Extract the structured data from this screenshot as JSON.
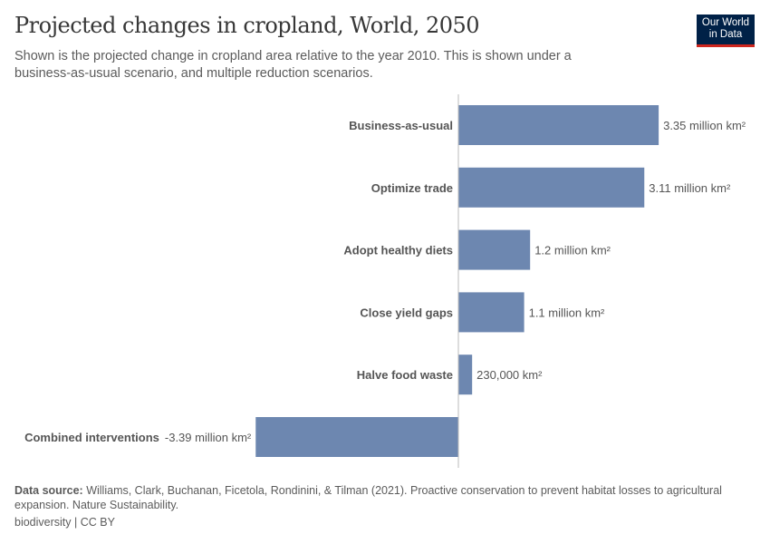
{
  "header": {
    "title": "Projected changes in cropland, World, 2050",
    "subtitle": "Shown is the projected change in cropland area relative to the year 2010. This is shown under a business-as-usual scenario, and multiple reduction scenarios.",
    "logo": "Our World in Data"
  },
  "chart_data": {
    "type": "bar",
    "orientation": "horizontal",
    "unit": "million km²",
    "categories": [
      "Business-as-usual",
      "Optimize trade",
      "Adopt healthy diets",
      "Close yield gaps",
      "Halve food waste",
      "Combined interventions"
    ],
    "values": [
      3.35,
      3.11,
      1.2,
      1.1,
      0.23,
      -3.39
    ],
    "data_labels": [
      "3.35 million km²",
      "3.11 million km²",
      "1.2 million km²",
      "1.1 million km²",
      "230,000 km²",
      "-3.39 million km²"
    ],
    "bar_color": "#6d87b0",
    "grid": false
  },
  "footer": {
    "source_label": "Data source:",
    "source_text": " Williams, Clark, Buchanan, Ficetola, Rondinini, & Tilman (2021). Proactive conservation to prevent habitat losses to agricultural expansion. Nature Sustainability.",
    "license": "biodiversity | CC BY"
  }
}
